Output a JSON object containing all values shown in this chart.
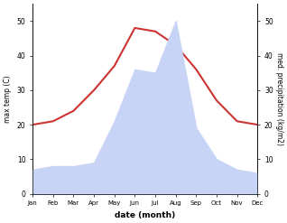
{
  "months": [
    "Jan",
    "Feb",
    "Mar",
    "Apr",
    "May",
    "Jun",
    "Jul",
    "Aug",
    "Sep",
    "Oct",
    "Nov",
    "Dec"
  ],
  "x": [
    0,
    1,
    2,
    3,
    4,
    5,
    6,
    7,
    8,
    9,
    10,
    11
  ],
  "temperature": [
    20,
    21,
    24,
    30,
    37,
    48,
    47,
    43,
    36,
    27,
    21,
    20
  ],
  "precipitation": [
    7,
    8,
    8,
    9,
    21,
    36,
    35,
    50,
    19,
    10,
    7,
    6
  ],
  "temp_ylim": [
    0,
    55
  ],
  "precip_ylim": [
    0,
    55
  ],
  "temp_yticks": [
    0,
    10,
    20,
    30,
    40,
    50
  ],
  "precip_yticks": [
    0,
    10,
    20,
    30,
    40,
    50
  ],
  "temp_color": "#cc3333",
  "precip_fill_color": "#c8d4f5",
  "xlabel": "date (month)",
  "ylabel_left": "max temp (C)",
  "ylabel_right": "med. precipitation (kg/m2)",
  "bg_color": "#ffffff",
  "fig_width": 3.18,
  "fig_height": 2.47,
  "dpi": 100
}
